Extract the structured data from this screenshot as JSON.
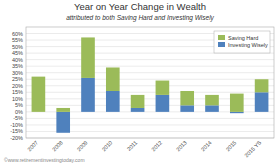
{
  "chart_data": {
    "type": "bar",
    "title": "Year on Year Change in Wealth",
    "subtitle": "attributed to both Saving Hard and Investing Wisely",
    "annotations": [
      "©www.retirementinvestingtoday.com"
    ],
    "categories": [
      "2007",
      "2008",
      "2009",
      "2010",
      "2011",
      "2012",
      "2013",
      "2014",
      "2015",
      "2015 YS"
    ],
    "series": [
      {
        "name": "Saving Hard",
        "color": "#9BBB59",
        "values": [
          27,
          3,
          31,
          18,
          10,
          11,
          11,
          8,
          14,
          10
        ]
      },
      {
        "name": "Investing Wisely",
        "color": "#4F81BD",
        "values": [
          0,
          -16,
          26,
          16,
          3,
          13,
          5,
          5,
          -1,
          15
        ]
      }
    ],
    "stacked": true,
    "ylim": [
      -20,
      65
    ],
    "yticks": [
      {
        "value": -20,
        "label": "-20%"
      },
      {
        "value": -15,
        "label": "-15%"
      },
      {
        "value": -10,
        "label": "-10%"
      },
      {
        "value": -5,
        "label": "-5%"
      },
      {
        "value": 0,
        "label": "0%"
      },
      {
        "value": 5,
        "label": "5%"
      },
      {
        "value": 10,
        "label": "10%"
      },
      {
        "value": 15,
        "label": "15%"
      },
      {
        "value": 20,
        "label": "20%"
      },
      {
        "value": 25,
        "label": "25%"
      },
      {
        "value": 30,
        "label": "30%"
      },
      {
        "value": 35,
        "label": "35%"
      },
      {
        "value": 40,
        "label": "40%"
      },
      {
        "value": 45,
        "label": "45%"
      },
      {
        "value": 50,
        "label": "50%"
      },
      {
        "value": 55,
        "label": "55%"
      },
      {
        "value": 60,
        "label": "60%"
      }
    ],
    "grid": true,
    "legend": "upper right"
  }
}
